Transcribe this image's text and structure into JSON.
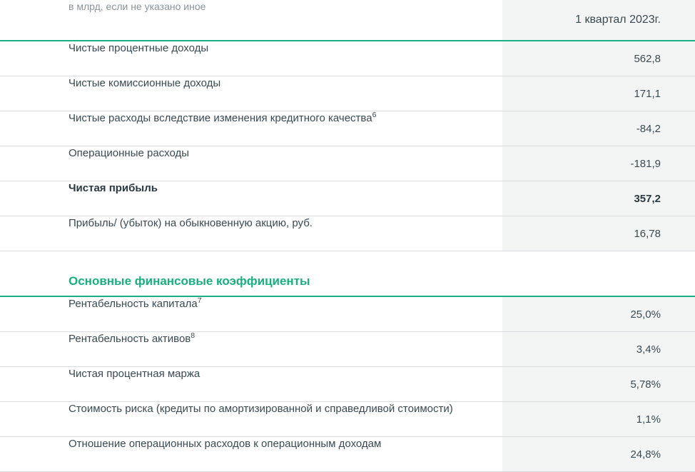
{
  "colors": {
    "accent": "#1db082",
    "text": "#3a4a52",
    "muted": "#8a9499",
    "value_bg": "#f3f5f4",
    "border": "#d9dde0",
    "bg": "#ffffff"
  },
  "header": {
    "unit_note": "в млрд, если не указано иное",
    "period": "1 квартал 2023г."
  },
  "income": [
    {
      "label": "Чистые процентные доходы",
      "value": "562,8",
      "sup": ""
    },
    {
      "label": "Чистые комиссионные доходы",
      "value": "171,1",
      "sup": ""
    },
    {
      "label": "Чистые расходы вследствие изменения кредитного качества",
      "value": "-84,2",
      "sup": "6"
    },
    {
      "label": "Операционные расходы",
      "value": "-181,9",
      "sup": ""
    },
    {
      "label": "Чистая прибыль",
      "value": "357,2",
      "sup": "",
      "bold": true
    },
    {
      "label": "Прибыль/ (убыток) на обыкновенную акцию, руб.",
      "value": "16,78",
      "sup": ""
    }
  ],
  "ratios_title": "Основные финансовые коэффициенты",
  "ratios": [
    {
      "label": "Рентабельность капитала",
      "value": "25,0%",
      "sup": "7"
    },
    {
      "label": "Рентабельность активов",
      "value": "3,4%",
      "sup": "8"
    },
    {
      "label": "Чистая процентная маржа",
      "value": "5,78%",
      "sup": ""
    },
    {
      "label": "Стоимость риска (кредиты по амортизированной и справедливой стоимости)",
      "value": "1,1%",
      "sup": ""
    },
    {
      "label": "Отношение операционных расходов к операционным доходам",
      "value": "24,8%",
      "sup": ""
    }
  ]
}
